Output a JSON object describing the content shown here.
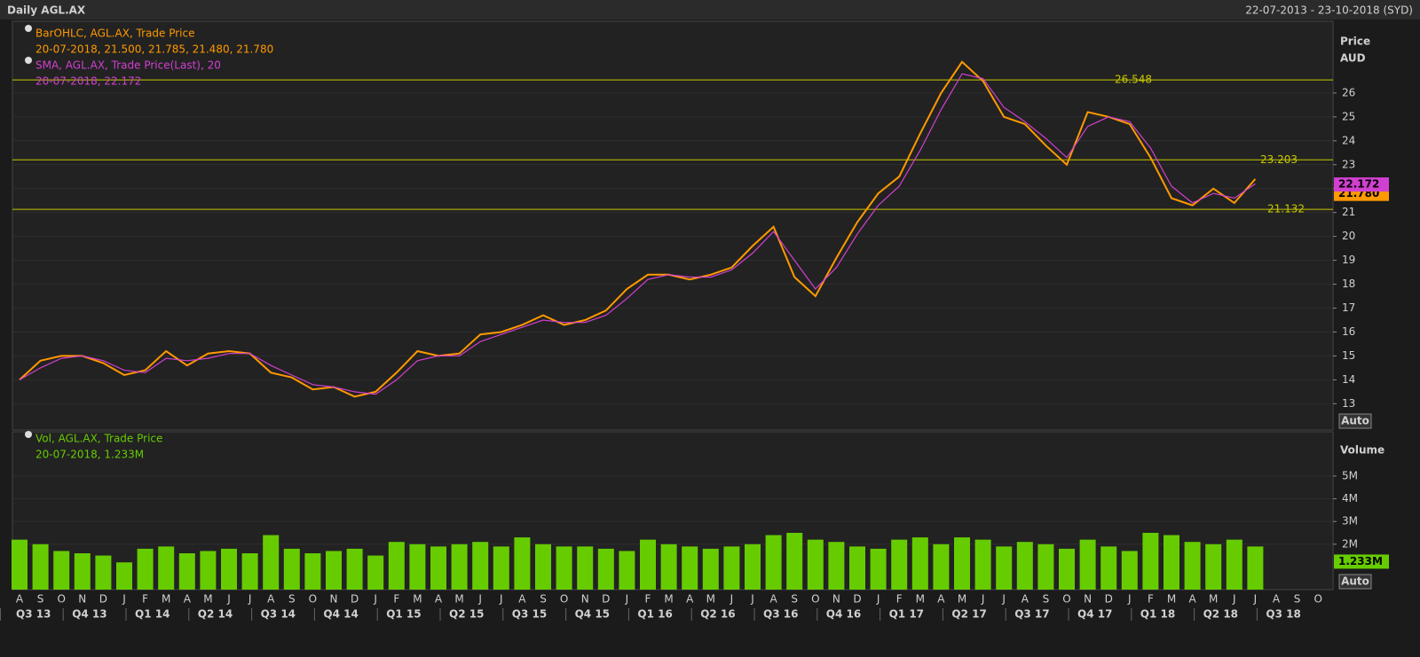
{
  "chart_data": [
    {
      "type": "line",
      "title": "Daily AGL.AX",
      "subtitle": "22-07-2013 - 23-10-2018 (SYD)",
      "y_label": "Price",
      "y_unit": "AUD",
      "scale_mode": "Auto",
      "ylim": [
        11.9,
        29.0
      ],
      "yticks": [
        13,
        14,
        15,
        16,
        17,
        18,
        19,
        20,
        21,
        22,
        23,
        24,
        25,
        26
      ],
      "levels": [
        26.548,
        23.203,
        21.132
      ],
      "level_color": "#c8c800",
      "series": [
        {
          "name": "BarOHLC, AGL.AX, Trade Price",
          "color": "#ff9900",
          "legend_detail": "20-07-2018, 21.500, 21.785, 21.480, 21.780",
          "last_value": {
            "value": 21.78,
            "label": "21.780"
          },
          "values": [
            14.0,
            14.8,
            15.0,
            15.0,
            14.7,
            14.2,
            14.4,
            15.2,
            14.6,
            15.1,
            15.2,
            15.1,
            14.3,
            14.1,
            13.6,
            13.7,
            13.3,
            13.5,
            14.3,
            15.2,
            15.0,
            15.1,
            15.9,
            16.0,
            16.3,
            16.7,
            16.3,
            16.5,
            16.9,
            17.8,
            18.4,
            18.4,
            18.2,
            18.4,
            18.7,
            19.6,
            20.4,
            18.3,
            17.5,
            19.1,
            20.6,
            21.8,
            22.5,
            24.3,
            26.0,
            27.3,
            26.5,
            25.0,
            24.7,
            23.8,
            23.0,
            25.2,
            25.0,
            24.7,
            23.3,
            21.6,
            21.3,
            22.0,
            21.4,
            22.4,
            null,
            null,
            null
          ]
        },
        {
          "name": "SMA, AGL.AX, Trade Price(Last),  20",
          "color": "#d040d0",
          "legend_detail": "20-07-2018, 22.172",
          "last_value": 22.172,
          "values": [
            14.0,
            14.5,
            14.9,
            15.0,
            14.8,
            14.4,
            14.3,
            14.9,
            14.8,
            14.9,
            15.1,
            15.1,
            14.6,
            14.2,
            13.8,
            13.7,
            13.5,
            13.4,
            14.0,
            14.8,
            15.0,
            15.0,
            15.6,
            15.9,
            16.2,
            16.5,
            16.4,
            16.4,
            16.7,
            17.4,
            18.2,
            18.4,
            18.3,
            18.3,
            18.6,
            19.3,
            20.2,
            19.0,
            17.8,
            18.7,
            20.1,
            21.3,
            22.1,
            23.6,
            25.3,
            26.8,
            26.6,
            25.4,
            24.8,
            24.1,
            23.3,
            24.6,
            25.0,
            24.8,
            23.7,
            22.1,
            21.4,
            21.8,
            21.6,
            22.2,
            null,
            null,
            null
          ]
        }
      ]
    },
    {
      "type": "bar",
      "y_label": "Volume",
      "scale_mode": "Auto",
      "ylim": [
        0,
        6.95
      ],
      "yticks": [
        {
          "value": 2,
          "label": "2M"
        },
        {
          "value": 3,
          "label": "3M"
        },
        {
          "value": 4,
          "label": "4M"
        },
        {
          "value": 5,
          "label": "5M"
        }
      ],
      "categories": [
        "A",
        "S",
        "O",
        "N",
        "D",
        "J",
        "F",
        "M",
        "A",
        "M",
        "J",
        "J",
        "A",
        "S",
        "O",
        "N",
        "D",
        "J",
        "F",
        "M",
        "A",
        "M",
        "J",
        "J",
        "A",
        "S",
        "O",
        "N",
        "D",
        "J",
        "F",
        "M",
        "A",
        "M",
        "J",
        "J",
        "A",
        "S",
        "O",
        "N",
        "D",
        "J",
        "F",
        "M",
        "A",
        "M",
        "J",
        "J",
        "A",
        "S",
        "O",
        "N",
        "D",
        "J",
        "F",
        "M",
        "A",
        "M",
        "J",
        "J",
        "A",
        "S",
        "O"
      ],
      "quarters": [
        "Q3 13",
        "Q4 13",
        "Q1 14",
        "Q2 14",
        "Q3 14",
        "Q4 14",
        "Q1 15",
        "Q2 15",
        "Q3 15",
        "Q4 15",
        "Q1 16",
        "Q2 16",
        "Q3 16",
        "Q4 16",
        "Q1 17",
        "Q2 17",
        "Q3 17",
        "Q4 17",
        "Q1 18",
        "Q2 18",
        "Q3 18"
      ],
      "series": [
        {
          "name": "Vol, AGL.AX, Trade Price",
          "color": "#66cc00",
          "legend_detail": "20-07-2018, 1.233M",
          "last_value": {
            "value": 1.233,
            "label": "1.233M"
          },
          "values": [
            2.2,
            2.0,
            1.7,
            1.6,
            1.5,
            1.2,
            1.8,
            1.9,
            1.6,
            1.7,
            1.8,
            1.6,
            2.4,
            1.8,
            1.6,
            1.7,
            1.8,
            1.5,
            2.1,
            2.0,
            1.9,
            2.0,
            2.1,
            1.9,
            2.3,
            2.0,
            1.9,
            1.9,
            1.8,
            1.7,
            2.2,
            2.0,
            1.9,
            1.8,
            1.9,
            2.0,
            2.4,
            2.5,
            2.2,
            2.1,
            1.9,
            1.8,
            2.2,
            2.3,
            2.0,
            2.3,
            2.2,
            1.9,
            2.1,
            2.0,
            1.8,
            2.2,
            1.9,
            1.7,
            2.5,
            2.4,
            2.1,
            2.0,
            2.2,
            1.9,
            null,
            null,
            null
          ]
        }
      ]
    }
  ]
}
